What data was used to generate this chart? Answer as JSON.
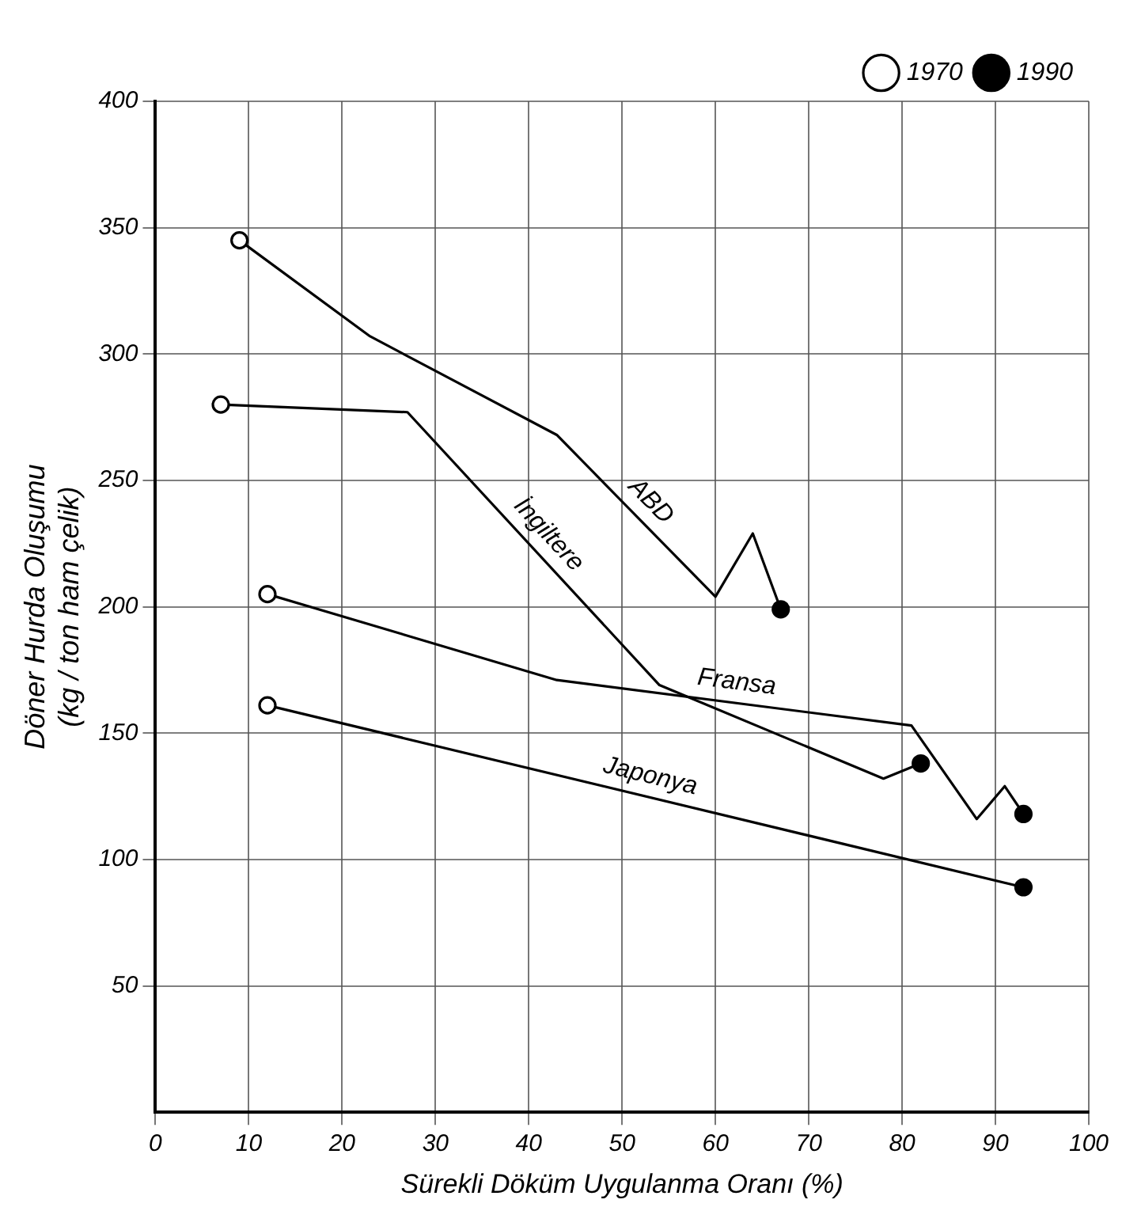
{
  "chart_data": {
    "type": "line",
    "xlabel": "Sürekli Döküm Uygulanma Oranı (%)",
    "ylabel": "Döner Hurda Oluşumu\n(kg / ton ham çelik)",
    "xlim": [
      0,
      100
    ],
    "xticks": [
      0,
      10,
      20,
      30,
      40,
      50,
      60,
      70,
      80,
      90,
      100
    ],
    "ylim": [
      0,
      400
    ],
    "yticks": [
      50,
      100,
      150,
      200,
      250,
      300,
      350,
      400
    ],
    "grid": true,
    "legend": "top right",
    "marker": "none",
    "line_style": "solid",
    "series": [
      {
        "name": "ABD",
        "color": "#000000",
        "x": [
          9,
          23,
          43,
          60,
          64,
          67
        ],
        "values": [
          345,
          307,
          268,
          204,
          229,
          199
        ]
      },
      {
        "name": "İngiltere",
        "color": "#000000",
        "x": [
          7,
          27,
          54,
          78,
          82
        ],
        "values": [
          280,
          277,
          169,
          132,
          138
        ]
      },
      {
        "name": "Fransa",
        "color": "#000000",
        "x": [
          12,
          43,
          81,
          88,
          91,
          93
        ],
        "values": [
          205,
          171,
          153,
          116,
          129,
          118
        ]
      },
      {
        "name": "Japonya",
        "color": "#000000",
        "x": [
          12,
          93
        ],
        "values": [
          161,
          89
        ]
      },
      {
        "name": "1970",
        "type": "scatter",
        "marker": "circle",
        "color": "#000000",
        "x": [
          9,
          7,
          12,
          12
        ],
        "values": [
          345,
          280,
          205,
          161
        ]
      },
      {
        "name": "1990",
        "type": "scatter",
        "marker": "circle",
        "color": "#000000",
        "x": [
          67,
          82,
          93,
          93
        ],
        "values": [
          199,
          138,
          118,
          89
        ]
      }
    ]
  }
}
